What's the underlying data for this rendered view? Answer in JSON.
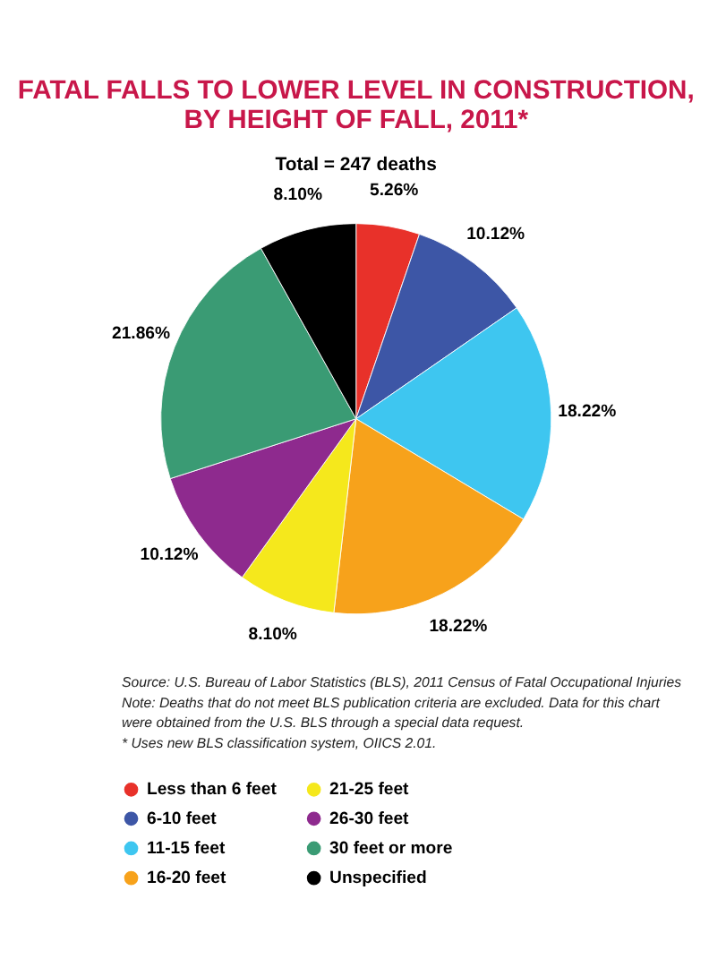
{
  "chart_data": {
    "type": "pie",
    "title": "FATAL FALLS TO LOWER LEVEL IN CONSTRUCTION,\nBY HEIGHT OF FALL, 2011*",
    "subtitle": "Total = 247 deaths",
    "categories": [
      "Less than 6 feet",
      "6-10 feet",
      "11-15 feet",
      "16-20 feet",
      "21-25 feet",
      "26-30 feet",
      "30 feet or more",
      "Unspecified"
    ],
    "values": [
      5.26,
      10.12,
      18.22,
      18.22,
      8.1,
      10.12,
      21.86,
      8.1
    ],
    "value_labels": [
      "5.26%",
      "10.12%",
      "18.22%",
      "18.22%",
      "8.10%",
      "10.12%",
      "21.86%",
      "8.10%"
    ],
    "colors": [
      "#e8312a",
      "#3d56a6",
      "#3ec6f0",
      "#f7a21b",
      "#f5e81c",
      "#8e2a8e",
      "#3a9b74",
      "#000000"
    ],
    "legend": "bottom",
    "annotations": [
      "Source: U.S. Bureau of Labor Statistics (BLS), 2011 Census of Fatal Occupational Injuries",
      "Note: Deaths that do not meet BLS publication criteria are excluded. Data for this chart were obtained from the U.S. BLS through a special data request.",
      "* Uses new BLS classification system, OIICS 2.01."
    ]
  }
}
